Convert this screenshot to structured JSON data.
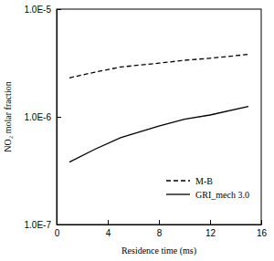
{
  "chart_data": {
    "type": "line",
    "xlabel": "Residence time (ms)",
    "ylabel": "NO₂ molar fraction",
    "x": [
      1,
      3,
      5,
      8,
      10,
      12,
      15
    ],
    "series": [
      {
        "name": "M-B",
        "color": "#000000",
        "line_style": "dashed",
        "values": [
          2.3e-06,
          2.6e-06,
          2.9e-06,
          3.15e-06,
          3.35e-06,
          3.5e-06,
          3.8e-06
        ]
      },
      {
        "name": "GRI_mech 3.0",
        "color": "#000000",
        "line_style": "solid",
        "values": [
          3.8e-07,
          5e-07,
          6.4e-07,
          8.2e-07,
          9.5e-07,
          1.04e-06,
          1.25e-06
        ]
      }
    ],
    "xlim": [
      0,
      16
    ],
    "xticks": [
      0,
      4,
      8,
      12,
      16
    ],
    "ylim": [
      1e-07,
      1e-05
    ],
    "yticks": [
      {
        "value": 1e-07,
        "label": "1.0E-7"
      },
      {
        "value": 1e-06,
        "label": "1.0E-6"
      },
      {
        "value": 1e-05,
        "label": "1.0E-5"
      }
    ],
    "log": "y",
    "legend": "lower right"
  }
}
